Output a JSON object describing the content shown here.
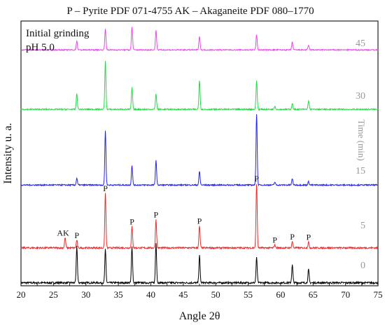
{
  "chart_data": {
    "type": "line",
    "title": "P – Pyrite PDF 071-4755     AK – Akaganeite PDF 080–1770",
    "xlabel": "Angle 2θ",
    "ylabel": "Intensity u. a.",
    "secondary_ylabel": "Time (min)",
    "xlim": [
      20,
      75
    ],
    "x_ticks": [
      "20",
      "25",
      "30",
      "35",
      "40",
      "45",
      "50",
      "55",
      "60",
      "65",
      "70",
      "75"
    ],
    "annotation": [
      "Initial grinding",
      "pH 5.0"
    ],
    "series": [
      {
        "name": "0",
        "color": "#000000",
        "baseline": 0.0,
        "peaks": [
          [
            28.6,
            0.5
          ],
          [
            33.0,
            0.45
          ],
          [
            37.1,
            0.49
          ],
          [
            40.8,
            0.54
          ],
          [
            47.5,
            0.37
          ],
          [
            56.3,
            0.34
          ],
          [
            61.8,
            0.24
          ],
          [
            64.3,
            0.18
          ]
        ]
      },
      {
        "name": "5",
        "color": "#ee2b2b",
        "baseline": 1.0,
        "peaks": [
          [
            26.8,
            0.16
          ],
          [
            28.6,
            0.12
          ],
          [
            33.0,
            0.85
          ],
          [
            37.1,
            0.33
          ],
          [
            40.8,
            0.44
          ],
          [
            47.5,
            0.34
          ],
          [
            56.3,
            1.0
          ],
          [
            59.1,
            0.05
          ],
          [
            61.8,
            0.1
          ],
          [
            64.3,
            0.09
          ]
        ]
      },
      {
        "name": "15",
        "color": "#2222ee",
        "baseline": 2.0,
        "peaks": [
          [
            28.6,
            0.14
          ],
          [
            33.0,
            1.1
          ],
          [
            37.1,
            0.4
          ],
          [
            40.8,
            0.51
          ],
          [
            47.5,
            0.28
          ],
          [
            56.3,
            1.45
          ],
          [
            59.1,
            0.06
          ],
          [
            61.8,
            0.13
          ],
          [
            64.3,
            0.07
          ]
        ]
      },
      {
        "name": "30",
        "color": "#22dd44",
        "baseline": 3.0,
        "peaks": [
          [
            28.6,
            0.31
          ],
          [
            33.0,
            0.95
          ],
          [
            37.1,
            0.43
          ],
          [
            40.8,
            0.31
          ],
          [
            47.5,
            0.58
          ],
          [
            56.3,
            0.57
          ],
          [
            59.1,
            0.07
          ],
          [
            61.8,
            0.12
          ],
          [
            64.3,
            0.17
          ]
        ]
      },
      {
        "name": "45",
        "color": "#ee44ee",
        "baseline": 4.0,
        "peaks": [
          [
            28.6,
            0.2
          ],
          [
            33.0,
            0.48
          ],
          [
            37.1,
            0.51
          ],
          [
            40.8,
            0.44
          ],
          [
            47.5,
            0.31
          ],
          [
            56.3,
            0.34
          ],
          [
            61.8,
            0.18
          ],
          [
            64.3,
            0.11
          ]
        ]
      }
    ],
    "peak_labels": [
      {
        "text": "AK",
        "x": 26.8
      },
      {
        "text": "P",
        "x": 28.6
      },
      {
        "text": "P",
        "x": 33.0
      },
      {
        "text": "P",
        "x": 37.1
      },
      {
        "text": "P",
        "x": 40.8
      },
      {
        "text": "P",
        "x": 47.5
      },
      {
        "text": "P",
        "x": 56.3
      },
      {
        "text": "P",
        "x": 59.1
      },
      {
        "text": "P",
        "x": 61.8
      },
      {
        "text": "P",
        "x": 64.3
      }
    ]
  }
}
